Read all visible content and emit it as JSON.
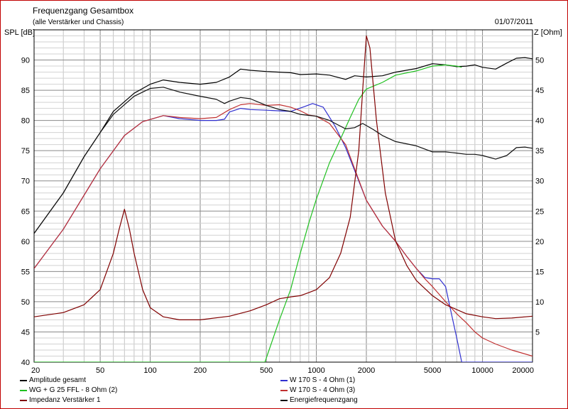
{
  "header": {
    "title": "Frequenzgang Gesamtbox",
    "subtitle": "(alle Verstärker und Chassis)",
    "date": "01/07/2011"
  },
  "chart_data": {
    "type": "line",
    "ylabel": "SPL [dB]",
    "y2label": "Z [Ohm]",
    "xscale": "log",
    "xlim": [
      20,
      20000
    ],
    "ylim": [
      40,
      95
    ],
    "y2lim": [
      0,
      55
    ],
    "grid": true,
    "legend": "bottom",
    "xticks": [
      20,
      50,
      100,
      200,
      500,
      1000,
      2000,
      5000,
      10000,
      20000
    ],
    "xtick_labels": [
      "20",
      "50",
      "100",
      "200",
      "500",
      "1000",
      "2000",
      "5000",
      "10000",
      "20000"
    ],
    "yticks": [
      40,
      45,
      50,
      55,
      60,
      65,
      70,
      75,
      80,
      85,
      90
    ],
    "y2ticks": [
      5,
      10,
      15,
      20,
      25,
      30,
      35,
      40,
      45,
      50
    ],
    "series": [
      {
        "name": "Amplitude gesamt",
        "axis": "left",
        "color": "#000000",
        "points": [
          [
            20,
            61.3
          ],
          [
            30,
            68
          ],
          [
            40,
            74
          ],
          [
            50,
            78
          ],
          [
            60,
            81.5
          ],
          [
            80,
            84.5
          ],
          [
            100,
            86
          ],
          [
            120,
            86.7
          ],
          [
            150,
            86.3
          ],
          [
            200,
            86
          ],
          [
            250,
            86.3
          ],
          [
            300,
            87.2
          ],
          [
            350,
            88.5
          ],
          [
            400,
            88.3
          ],
          [
            500,
            88.1
          ],
          [
            600,
            88
          ],
          [
            700,
            87.9
          ],
          [
            800,
            87.6
          ],
          [
            1000,
            87.7
          ],
          [
            1200,
            87.5
          ],
          [
            1500,
            86.8
          ],
          [
            1700,
            87.4
          ],
          [
            2000,
            87.2
          ],
          [
            2500,
            87.4
          ],
          [
            3000,
            88
          ],
          [
            4000,
            88.6
          ],
          [
            5000,
            89.4
          ],
          [
            6000,
            89.2
          ],
          [
            7000,
            88.9
          ],
          [
            8000,
            89
          ],
          [
            9000,
            89.2
          ],
          [
            10000,
            88.8
          ],
          [
            12000,
            88.5
          ],
          [
            14000,
            89.5
          ],
          [
            16000,
            90.3
          ],
          [
            18000,
            90.4
          ],
          [
            20000,
            90.2
          ]
        ]
      },
      {
        "name": "W 170 S - 4 Ohm (1)",
        "axis": "left",
        "color": "#3030d0",
        "points": [
          [
            20,
            55.5
          ],
          [
            30,
            62
          ],
          [
            50,
            72
          ],
          [
            70,
            77.5
          ],
          [
            90,
            79.8
          ],
          [
            120,
            80.8
          ],
          [
            150,
            80.3
          ],
          [
            200,
            80
          ],
          [
            250,
            80
          ],
          [
            280,
            80.2
          ],
          [
            300,
            81.4
          ],
          [
            350,
            82
          ],
          [
            400,
            81.8
          ],
          [
            500,
            81.7
          ],
          [
            700,
            81.5
          ],
          [
            850,
            82.3
          ],
          [
            950,
            82.8
          ],
          [
            1100,
            82.2
          ],
          [
            1300,
            79
          ],
          [
            1500,
            75.5
          ],
          [
            2000,
            66.8
          ],
          [
            2500,
            62.5
          ],
          [
            3000,
            60
          ],
          [
            3500,
            57.5
          ],
          [
            4000,
            55.5
          ],
          [
            4500,
            54
          ],
          [
            5000,
            53.8
          ],
          [
            5500,
            53.8
          ],
          [
            6000,
            52.5
          ],
          [
            6500,
            48
          ],
          [
            7000,
            44
          ],
          [
            7500,
            40
          ],
          [
            20000,
            40
          ]
        ]
      },
      {
        "name": "W 170 S - 4 Ohm (3)",
        "axis": "left",
        "color": "#c03030",
        "points": [
          [
            20,
            55.5
          ],
          [
            30,
            62
          ],
          [
            50,
            72
          ],
          [
            70,
            77.5
          ],
          [
            90,
            79.8
          ],
          [
            120,
            80.8
          ],
          [
            150,
            80.5
          ],
          [
            200,
            80.3
          ],
          [
            250,
            80.5
          ],
          [
            300,
            81.8
          ],
          [
            350,
            82.6
          ],
          [
            400,
            82.8
          ],
          [
            500,
            82.5
          ],
          [
            600,
            82.6
          ],
          [
            700,
            82.2
          ],
          [
            800,
            81.6
          ],
          [
            900,
            80.9
          ],
          [
            1000,
            80.7
          ],
          [
            1200,
            79.5
          ],
          [
            1500,
            76
          ],
          [
            2000,
            66.8
          ],
          [
            2500,
            62.5
          ],
          [
            3000,
            60
          ],
          [
            3500,
            57.5
          ],
          [
            4000,
            55.5
          ],
          [
            4500,
            53.8
          ],
          [
            5000,
            52.5
          ],
          [
            6000,
            50
          ],
          [
            7000,
            48
          ],
          [
            8000,
            46.5
          ],
          [
            9000,
            45
          ],
          [
            10000,
            44
          ],
          [
            12000,
            43
          ],
          [
            15000,
            42
          ],
          [
            20000,
            41
          ]
        ]
      },
      {
        "name": "WG + G 25 FFL - 8 Ohm (2)",
        "axis": "left",
        "color": "#20c020",
        "points": [
          [
            20,
            40
          ],
          [
            490,
            40
          ],
          [
            550,
            44
          ],
          [
            600,
            47
          ],
          [
            700,
            52
          ],
          [
            800,
            58
          ],
          [
            900,
            63
          ],
          [
            1000,
            67
          ],
          [
            1200,
            73
          ],
          [
            1400,
            77
          ],
          [
            1600,
            80.5
          ],
          [
            1800,
            83.5
          ],
          [
            2000,
            85.2
          ],
          [
            2500,
            86.3
          ],
          [
            3000,
            87.5
          ],
          [
            4000,
            88.2
          ],
          [
            5000,
            89
          ],
          [
            6000,
            89.2
          ],
          [
            7000,
            89
          ],
          [
            7500,
            88.8
          ]
        ]
      },
      {
        "name": "Impedanz Verstärker 1",
        "axis": "right",
        "color": "#800000",
        "points": [
          [
            20,
            7.5
          ],
          [
            30,
            8.2
          ],
          [
            40,
            9.5
          ],
          [
            50,
            12
          ],
          [
            60,
            18
          ],
          [
            65,
            22
          ],
          [
            70,
            25.3
          ],
          [
            75,
            22
          ],
          [
            80,
            18
          ],
          [
            90,
            12
          ],
          [
            100,
            9
          ],
          [
            120,
            7.5
          ],
          [
            150,
            7
          ],
          [
            200,
            7
          ],
          [
            300,
            7.6
          ],
          [
            400,
            8.5
          ],
          [
            500,
            9.5
          ],
          [
            600,
            10.5
          ],
          [
            700,
            10.8
          ],
          [
            800,
            11
          ],
          [
            900,
            11.5
          ],
          [
            1000,
            12
          ],
          [
            1200,
            14
          ],
          [
            1400,
            18
          ],
          [
            1600,
            24
          ],
          [
            1800,
            35
          ],
          [
            1900,
            45
          ],
          [
            2000,
            54
          ],
          [
            2100,
            52
          ],
          [
            2300,
            40
          ],
          [
            2600,
            28
          ],
          [
            3000,
            20
          ],
          [
            3500,
            16
          ],
          [
            4000,
            13.5
          ],
          [
            5000,
            11
          ],
          [
            6000,
            9.5
          ],
          [
            8000,
            8
          ],
          [
            10000,
            7.5
          ],
          [
            12000,
            7.2
          ],
          [
            15000,
            7.3
          ],
          [
            20000,
            7.6
          ]
        ]
      },
      {
        "name": "Energiefrequenzgang",
        "axis": "left",
        "color": "#101010",
        "points": [
          [
            20,
            61.3
          ],
          [
            30,
            68
          ],
          [
            40,
            74
          ],
          [
            50,
            78
          ],
          [
            60,
            81
          ],
          [
            80,
            84
          ],
          [
            100,
            85.3
          ],
          [
            120,
            85.5
          ],
          [
            150,
            84.7
          ],
          [
            200,
            84
          ],
          [
            250,
            83.5
          ],
          [
            280,
            82.8
          ],
          [
            300,
            83.2
          ],
          [
            350,
            83.8
          ],
          [
            400,
            83.6
          ],
          [
            500,
            82.5
          ],
          [
            600,
            81.8
          ],
          [
            700,
            81.5
          ],
          [
            800,
            81
          ],
          [
            1000,
            80.7
          ],
          [
            1200,
            80
          ],
          [
            1500,
            78.6
          ],
          [
            1700,
            78.8
          ],
          [
            1900,
            79.5
          ],
          [
            2200,
            78.5
          ],
          [
            2500,
            77.5
          ],
          [
            3000,
            76.5
          ],
          [
            4000,
            75.8
          ],
          [
            5000,
            74.8
          ],
          [
            6000,
            74.8
          ],
          [
            7000,
            74.6
          ],
          [
            8000,
            74.4
          ],
          [
            9000,
            74.4
          ],
          [
            10000,
            74.2
          ],
          [
            12000,
            73.6
          ],
          [
            14000,
            74.2
          ],
          [
            16000,
            75.5
          ],
          [
            18000,
            75.6
          ],
          [
            20000,
            75.4
          ]
        ]
      }
    ]
  }
}
